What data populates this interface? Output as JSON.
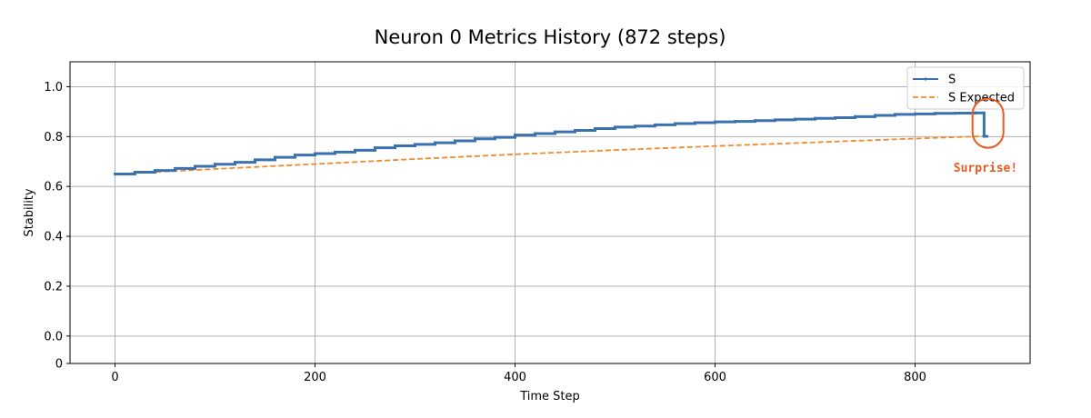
{
  "chart_data": {
    "type": "line",
    "title": "Neuron 0 Metrics History (872 steps)",
    "xlabel": "Time Step",
    "ylabel": "Stability",
    "xlim": [
      -45,
      915
    ],
    "ylim": [
      -0.11,
      1.1
    ],
    "grid": true,
    "legend_position": "top-right",
    "x_ticks": [
      0,
      200,
      400,
      600,
      800
    ],
    "x_tick_labels": [
      "0",
      "200",
      "400",
      "600",
      "800"
    ],
    "y_ticks": [
      1.0,
      0.8,
      0.6,
      0.4,
      0.2,
      0.0,
      -0.11
    ],
    "y_tick_labels": [
      "1.0",
      "0.8",
      "0.6",
      "0.4",
      "0.2",
      "0.0",
      "0"
    ],
    "series": [
      {
        "name": "S",
        "color": "#3a72b0",
        "style": "solid-with-markers",
        "x": [
          0,
          20,
          40,
          60,
          80,
          100,
          120,
          140,
          160,
          180,
          200,
          220,
          240,
          260,
          280,
          300,
          320,
          340,
          360,
          380,
          400,
          420,
          440,
          460,
          480,
          500,
          520,
          540,
          560,
          580,
          600,
          620,
          640,
          660,
          680,
          700,
          720,
          740,
          760,
          780,
          800,
          820,
          840,
          860,
          868,
          869,
          872
        ],
        "values": [
          0.65,
          0.657,
          0.664,
          0.672,
          0.681,
          0.689,
          0.697,
          0.707,
          0.717,
          0.726,
          0.732,
          0.738,
          0.745,
          0.755,
          0.763,
          0.769,
          0.775,
          0.783,
          0.791,
          0.797,
          0.806,
          0.812,
          0.819,
          0.825,
          0.832,
          0.838,
          0.842,
          0.847,
          0.852,
          0.856,
          0.859,
          0.861,
          0.864,
          0.867,
          0.87,
          0.873,
          0.876,
          0.88,
          0.885,
          0.889,
          0.891,
          0.893,
          0.894,
          0.895,
          0.895,
          0.801,
          0.801
        ]
      },
      {
        "name": "S Expected",
        "color": "#f08a2c",
        "style": "dashed",
        "x": [
          0,
          100,
          200,
          300,
          400,
          500,
          600,
          700,
          800,
          872
        ],
        "values": [
          0.65,
          0.67,
          0.69,
          0.71,
          0.729,
          0.746,
          0.762,
          0.777,
          0.792,
          0.802
        ]
      }
    ],
    "annotation": {
      "text": "Surprise!",
      "color": "#e85a1c",
      "target_x": 872,
      "target_y": 0.85
    }
  }
}
